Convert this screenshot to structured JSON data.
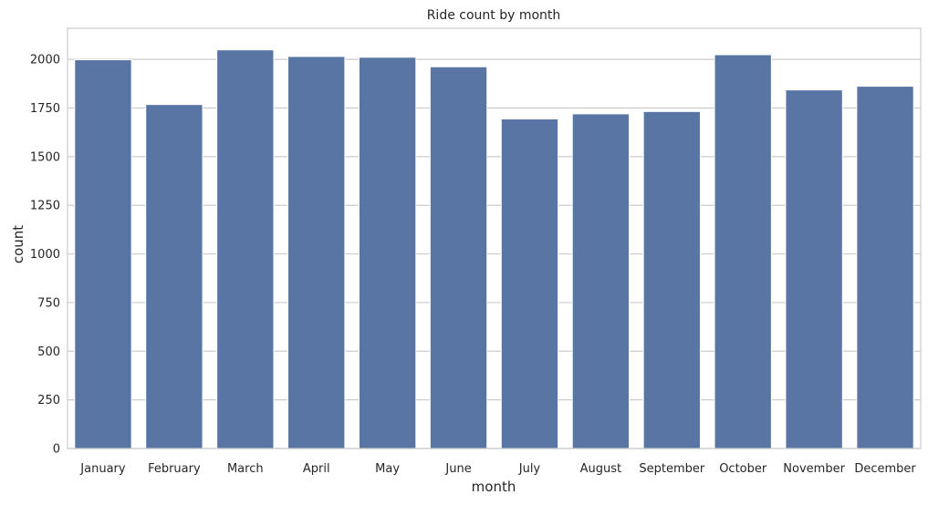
{
  "chart_data": {
    "type": "bar",
    "title": "Ride count by month",
    "xlabel": "month",
    "ylabel": "count",
    "categories": [
      "January",
      "February",
      "March",
      "April",
      "May",
      "June",
      "July",
      "August",
      "September",
      "October",
      "November",
      "December"
    ],
    "values": [
      1998,
      1768,
      2049,
      2015,
      2011,
      1962,
      1694,
      1720,
      1732,
      2024,
      1843,
      1862
    ],
    "ylim": [
      0,
      2160
    ],
    "yticks": [
      0,
      250,
      500,
      750,
      1000,
      1250,
      1500,
      1750,
      2000
    ],
    "grid": true,
    "legend": "none",
    "bar_color": "#5975a4",
    "grid_color": "#cccccc",
    "frame_color": "#cccccc"
  }
}
